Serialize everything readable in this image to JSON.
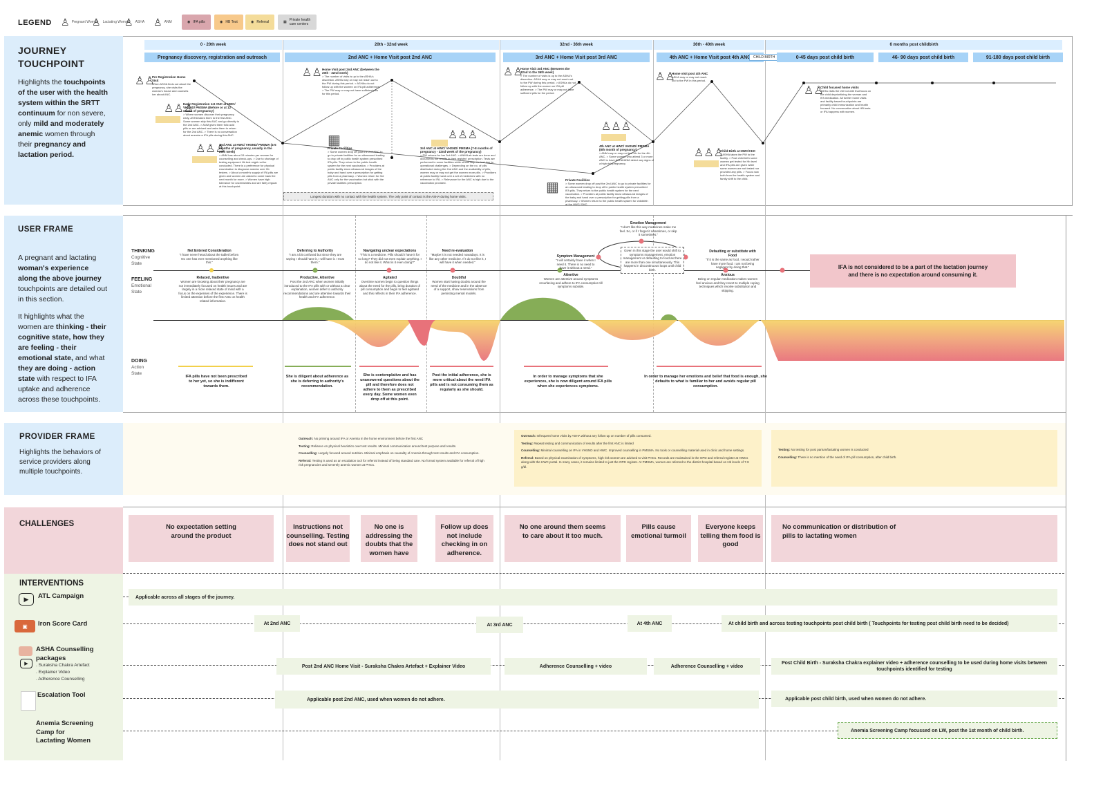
{
  "legend": {
    "title": "LEGEND",
    "items": [
      {
        "label": "Pregnant Woman",
        "icon": "pregnant-woman-icon"
      },
      {
        "label": "Lactating Woman",
        "icon": "lactating-woman-icon"
      },
      {
        "label": "ASHA",
        "icon": "asha-icon"
      },
      {
        "label": "ANM",
        "icon": "anm-icon"
      }
    ],
    "chips": [
      {
        "label": "IFA pills",
        "color": "#d9a6ad"
      },
      {
        "label": "HB Test",
        "color": "#f7c98b"
      },
      {
        "label": "Referral",
        "color": "#f4dc9a"
      },
      {
        "label": "Private health care centers",
        "color": "#d8d8d8"
      }
    ]
  },
  "sections": {
    "journey": {
      "title": "JOURNEY TOUCHPOINT",
      "p1": "Highlights the ",
      "b1": "touchpoints of the user with the health system within the SRTT continuum",
      "p2": " for non severe, only ",
      "b2": "mild and moderately anemic",
      "p3": " women through their ",
      "b3": "pregnancy and lactation period."
    },
    "user": {
      "title": "USER FRAME",
      "p1a": "A pregnant and lactating ",
      "b1": "woman's experience along the above journey",
      "p1b": " touchpoints are detailed out in this section.",
      "p2a": "It highlights what the women are ",
      "b2": "thinking - their cognitive state, how they are feeling - their emotional state,",
      "p2b": " and what ",
      "b3": "they are doing - action state",
      "p2c": " with respect to IFA uptake and adherence across these touchpoints."
    },
    "provider": {
      "title": "PROVIDER FRAME",
      "p": "Highlights the behaviors of service providers along multiple touchpoints."
    },
    "challenges": {
      "title": "CHALLENGES"
    },
    "interventions": {
      "title": "INTERVENTIONS"
    }
  },
  "stages": [
    {
      "week": "0 - 20th week",
      "name": "Pregnancy discovery, registration and outreach"
    },
    {
      "week": "20th - 32nd week",
      "name": "2nd ANC + Home Visit post 2nd ANC"
    },
    {
      "week": "32nd - 36th week",
      "name": "3rd ANC + Home Visit post 3rd ANC"
    },
    {
      "week": "36th - 40th week",
      "name": "4th ANC + Home Visit post 4th ANC"
    },
    {
      "week": "6 months post childbirth",
      "name": "0-45 days post child birth"
    },
    {
      "name": "46- 90 days post child birth"
    },
    {
      "name": "91-180 days post child birth"
    }
  ],
  "child_birth_tag": "CHILD BIRTH",
  "touchpoints": [
    {
      "title": "Pre Registration Home Visit",
      "text": "When ASHA finds out about the pregnancy, she visits the woman's house and counsels her about ANC."
    },
    {
      "title": "Early Registration 1st ANC at HWC/ VHSND/ PMSMA (Before or at 12 weeks of pregnancy)",
      "text": "> Where women discover their pregnancy early, ASHA takes them to the first ANC. Some women skip this ANC and go directly to the 2nd ANC. > ANM gives them folic acid pills or are advised and asks them to return for the 2nd ANC. > There is no conversation about anemia or IFA pills during this ANC."
    },
    {
      "title": "2nd ANC at HWC/ VHSND/ PMSMA (4-5 months of pregnancy, usually in the 20th week)",
      "text": "> ANM has about 15 minutes per woman for counselling and check-ups. > Due to shortage of testing equipment Hb test might not be conducted. There is a preference for physical examination to diagnose anemia over Hb testers. > About a month's supply of IFA pills are given and women are asked to come back the next month for more. > Women have high tolerance for uncertainties and are fairly regular at this touchpoint."
    },
    {
      "title": "Home Visit post 2nd ANC (between the 20th - 32nd week)",
      "text": "> The number of visits is up to the ASHA's discretion. ASHA may or may not reach out to the PW during this period. > ASHAs do not follow up with the women on IFA pill adherence. > The PW may or may not have sufficient pills for this period."
    },
    {
      "title": "Private Facilities",
      "text": "> Some women drop off post the 2nd ANC to go to private facilities for an ultrasound leading to drop off in public health system prescribed IFA pills. They return to the public health system for the next vaccination. > Providers at public facility show ultrasound images of the baby and hand over a prescription for getting pills from a pharmacy. > Women return for 3rd ANC only for the vaccination but stick with the private facilities prescription."
    },
    {
      "title": "3rd ANC at HWC/ VHSND/ PMSMA (7-8 months of pregnancy - 32nd week of the pregnancy)",
      "text": "> PW returns for her 3rd ANC. > ANM/Lab tests are done and documents the results in their register/ prescription. Tests are performed in some facilities while others skip the test due to operational challenges. > Depending on the no. of pills distributed during the 2nd ANC and the availability of pills, women may or may not get the women more pills. > Providers at public facility hand over a set of medicines with no reference to IFA. > Relevance for the ANC is high due to the vaccination provided."
    },
    {
      "title": "Home Visit 3rd ANC (Between the 32nd to the 36th week)",
      "text": "> The number of visits is up to the ASHA's discretion. ASHA may or may not reach out to the PW during this period. > ASHAs do not follow up with the women on IFA pill adherence. > The PW may or may not have sufficient pills for the period."
    },
    {
      "title": "4th ANC at HWC/ VHSND/ PMSMA (8th month of pregnancy)",
      "text": "> ANM may or may not test Hb for the 4th ANC. > Some women who attend 3 or more ANC to have ASHA/ANM detect any signs of a high risk pregnancy."
    },
    {
      "title": "Private Facilities",
      "text": "> Some women drop off post the 2nd ANC to go to private facilities for an ultrasound leading to drop off in public health system prescribed IFA pills. They return to the public health system for the next vaccination. > Providers at public facility show ultrasound images of the baby and hand over a prescription for getting pills from a pharmacy. > Women return to the public health system for childbirth at the HWC/ SHC."
    },
    {
      "title": "Home visit post 4th ANC",
      "text": "ASHA may or may not reach out to the PW in this period."
    },
    {
      "title": "Child Birth at HWC/CHC",
      "text": "> ASHA takes the PW to the facility. > Post child birth some women get tested for Hb level and IFA pills are given while some women are not tested nor provided any pills. > Focus now both from the health system and family shift to the child."
    },
    {
      "title": "Child focused home visits",
      "text": "ASHA visits the LW but with that focus on the child deprioritizing the woman and IFA medication. All further home visits and facility based touchpoints are primarily child immunization and health focused. No conversation about HB tests or IFA happens with women."
    }
  ],
  "longest_duration_note": "Longest duration with no contact with the health system. The only point of contact is the ASHA during home visits.",
  "user_frame": {
    "thinking_label": "THINKING",
    "thinking_sub1": "Cognitive",
    "thinking_sub2": "State",
    "feeling_label": "FEELING",
    "feeling_sub1": "Emotional",
    "feeling_sub2": "State",
    "doing_label": "DOING",
    "doing_sub1": "Action",
    "doing_sub2": "State",
    "thoughts": [
      {
        "title": "Not Entered Consideration",
        "quote": "\"I have never heard about the tablet before. No one has ever mentioned anything like this.\""
      },
      {
        "title": "Deferring to Authority",
        "quote": "\"I am a bit confused but since they are saying I should have it, I will have it. I trust them.\""
      },
      {
        "title": "Navigating unclear expectations",
        "quote": "\"This is a medicine. Pills should I have it for so long? They did not even explain anything. I do not like it. What is it even doing?\""
      },
      {
        "title": "Need re-evaluation",
        "quote": "\"Maybe it is not needed nowadays. It is like any other medicine. If I do not like it, I will have it when needed.\""
      },
      {
        "title": "Symptom Management",
        "quote": "\"I will certainly have it when I need it. There is no need to have it without a need.\""
      },
      {
        "title": "Emotion Management",
        "quote": "\"I don't like this way medicines make me feel. So, or if I forget it sometimes, or skip it sometimes.\""
      },
      {
        "title": "Defaulting or substitute with Food",
        "quote": "\"If it is the same as food, I would rather have more food. I am not being negligent by doing that.\""
      }
    ],
    "emotion_box": "Given in this stage the user would shift to symptoms management, emotion management or defaulting to food as there are more than one simultaneously. This happens in discontinuous loops until child birth.",
    "emotions": [
      {
        "title": "Relaxed, Inattentive",
        "text": "Women are knowing about their pregnancy are not immediately focused on health issues and are largely in a more relaxed state of mind with a focus on the expenses of the experience. There is limited attention before the first ANC on health related information."
      },
      {
        "title": "Productive, Attentive",
        "text": "Post the 2nd ANC when women initially introduced to the IFA pills with or without a clear explanation, women defer to authority recommendations and are attentive towards their health and IFA adherence."
      },
      {
        "title": "Agitated",
        "text": "Overtime women begin to question things about the need for the pills, bring duration of pill consumption and begin to feel agitated and this reflects in their IFA adherence."
      },
      {
        "title": "Doubtful",
        "text": "Women start having doubts around the need of the medicine and in the absence of a support, show reservations from persisting mental models."
      },
      {
        "title": "Attentive",
        "text": "Women are attentive around symptoms resurfacing and adhere to IFA consumption till symptoms subside."
      },
      {
        "title": "Anxious",
        "text": "Being on regular medication makes women feel anxious and they resort to multiple coping techniques which involve substitution and skipping."
      }
    ],
    "lactation_note": "IFA is not considered to be a part of the lactation journey and there is no expectation around consuming it.",
    "doings": [
      "IFA pills have not been prescribed to her yet, so she is indifferent towards them.",
      "She is diligent about adherence as she is deferring to authority's recommendation.",
      "She is contemplative and has unanswered questions about the pill and therefore does not adhere to them as prescribed every day. Some women even drop off at this point.",
      "Post the initial adherence, she is more critical about the need IFA pills and is not consuming them as regularly as she should.",
      "In order to manage symptoms that she experiences, she is now diligent around IFA pills when she experiences symptoms.",
      "In order to manage her emotions and belief that food is enough, she defaults to what is familiar to her and avoids regular pill consumption."
    ]
  },
  "provider_frame": {
    "box1": [
      {
        "k": "Outreach:",
        "v": " No priming around IFA or Anemia in the home environment before the first ANC"
      },
      {
        "k": "Testing:",
        "v": " Reliance on physical heuristics over test results. Minimal communication around test purpose and results."
      },
      {
        "k": "Counselling:",
        "v": " Largely focused around nutrition. Minimal emphasis on causality of Anemia through test results and IFA consumption."
      },
      {
        "k": "Referral:",
        "v": " Testing is used as an escalation tool for referral instead of being standard care. No formal system available for referral of high risk pregnancies and severely anemic women at PHCs."
      }
    ],
    "box2": [
      {
        "k": "Outreach:",
        "v": " Infrequent home visits by ASHA without any follow up on number of pills consumed."
      },
      {
        "k": "Testing:",
        "v": " Repeat testing and communication of results after the first ANC is limited"
      },
      {
        "k": "Counselling:",
        "v": " Minimal counselling on IFA in VHSND and HWC. Improved counselling in PMSMA. No tools or counselling material used in clinic and home settings."
      },
      {
        "k": "Referral:",
        "v": " Based on physical examination of symptoms, high risk women are advised to visit PHCs. Records are maintained in the OPD and referral register at HWCs along with the HWC portal. In many cases, it remains limited to just the OPD register. At PMSMA, women are referred to the district hospital based on Hb levels of 7-8 g/dl."
      }
    ],
    "box3": [
      {
        "k": "Testing:",
        "v": " No testing for post partum/lactating women is conducted"
      },
      {
        "k": "Counselling:",
        "v": " There is no mention of the need of IFA pill consumption, after child birth."
      }
    ]
  },
  "challenges": [
    "No expectation setting around the product",
    "Instructions not counselling. Testing does not stand out",
    "No one is addressing the doubts that the women have",
    "Follow up does not include checking in on adherence.",
    "No one around them seems to care about it too much.",
    "Pills cause emotional turmoil",
    "Everyone keeps telling them food is good",
    "No communication or distribution of pills to lactating women"
  ],
  "interventions": {
    "atl": {
      "label": "ATL Campaign",
      "bar": "Applicable across all stages of the journey."
    },
    "iron": {
      "label": "Iron Score Card",
      "b1": "At 2nd ANC",
      "b2": "At 3rd ANC",
      "b3": "At 4th ANC",
      "b4": "At child birth and across testing touchpoints post child birth ( Touchpoints for testing post child birth need to be decided)"
    },
    "asha": {
      "label1": "ASHA Counselling",
      "label2": "packages",
      "s1": ". Suraksha Chakra Artefact",
      "s2": ". Explainer Video",
      "s3": ". Adherence Counselling",
      "b1": "Post 2nd ANC Home Visit - Suraksha Chakra Artefact + Explainer Video",
      "b2": "Adherence Counselling + video",
      "b3": "Adherence Counselling + video",
      "b4": "Post Child Birth - Suraksha Chakra explainer video + adherence counselling to be used during home visits between touchpoints identified for testing"
    },
    "escalation": {
      "label": "Escalation Tool",
      "b1": "Applicable post 2nd ANC, used when women do not adhere.",
      "b2": "Applicable post child birth, used when women do not adhere."
    },
    "anemia": {
      "label1": "Anemia Screening",
      "label2": "Camp for",
      "label3": "Lactating Women",
      "b1": "Anemia Screening Camp focussed on LW, post the 1st month of child birth."
    }
  },
  "colors": {
    "blue_bg": "#dcedfb",
    "green_bg": "#eef4e4",
    "pink": "#f2d6da",
    "yellow_bg": "#fdf6de",
    "curve_green": "#7fa94d",
    "curve_red": "#e46a6a",
    "curve_yellow": "#f4d35e"
  }
}
